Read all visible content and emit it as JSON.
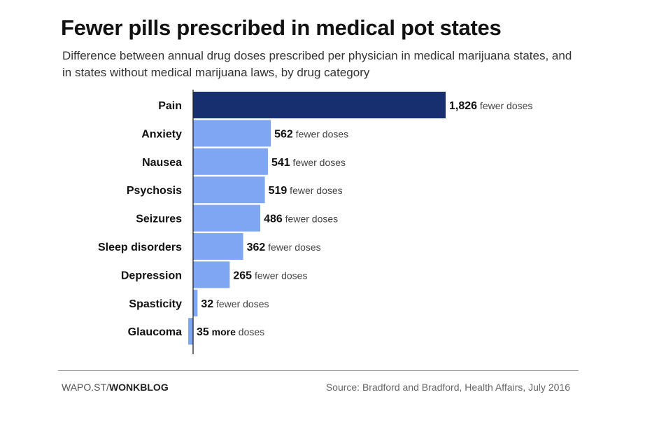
{
  "chart_data": {
    "type": "bar",
    "orientation": "horizontal",
    "title": "Fewer pills prescribed in medical pot states",
    "subtitle": "Difference between annual drug doses prescribed per physician in medical marijuana states, and in states without medical marijuana laws, by drug category",
    "categories": [
      "Pain",
      "Anxiety",
      "Nausea",
      "Psychosis",
      "Seizures",
      "Sleep disorders",
      "Depression",
      "Spasticity",
      "Glaucoma"
    ],
    "values": [
      1826,
      562,
      541,
      519,
      486,
      362,
      265,
      32,
      -35
    ],
    "value_labels": [
      "1,826",
      "562",
      "541",
      "519",
      "486",
      "362",
      "265",
      "32",
      "35"
    ],
    "label_suffixes": [
      {
        "bold": "",
        "text": "fewer doses"
      },
      {
        "bold": "",
        "text": "fewer doses"
      },
      {
        "bold": "",
        "text": "fewer doses"
      },
      {
        "bold": "",
        "text": "fewer doses"
      },
      {
        "bold": "",
        "text": "fewer doses"
      },
      {
        "bold": "",
        "text": "fewer doses"
      },
      {
        "bold": "",
        "text": "fewer doses"
      },
      {
        "bold": "",
        "text": "fewer doses"
      },
      {
        "bold": "more",
        "text": "doses"
      }
    ],
    "value_meaning": "fewer doses (positive) / more doses (negative)",
    "grid": false,
    "colors": {
      "highlight": "#172f6f",
      "default": "#7fa6f3",
      "axis": "#222222"
    }
  },
  "footer": {
    "credit_prefix": "WAPO.ST/",
    "credit_bold": "WONKBLOG",
    "source": "Source: Bradford and Bradford, Health Affairs, July 2016"
  }
}
